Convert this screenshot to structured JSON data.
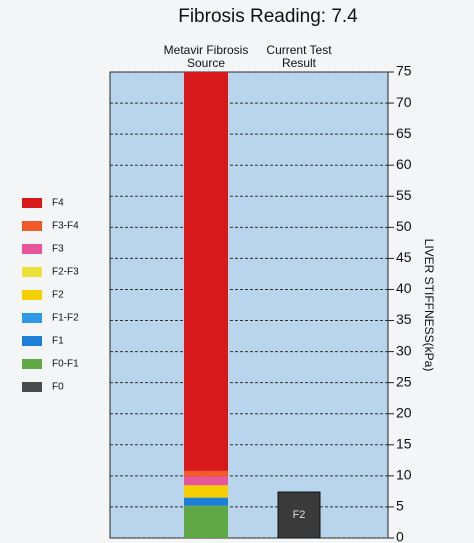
{
  "chart_data": {
    "type": "stacked_bar",
    "title": "Fibrosis Reading: 7.4",
    "categories": [
      "Metavir Fibrosis Source",
      "Current Test Result"
    ],
    "series": [
      {
        "name": "F4",
        "color": "#d7191c",
        "values": [
          64.2,
          null
        ]
      },
      {
        "name": "F3-F4",
        "color": "#f05a28",
        "values": [
          0.9,
          null
        ]
      },
      {
        "name": "F3",
        "color": "#e8559a",
        "values": [
          1.4,
          null
        ]
      },
      {
        "name": "F2-F3",
        "color": "#f2e03a",
        "values": [
          null,
          null
        ]
      },
      {
        "name": "F2",
        "color": "#f5d000",
        "values": [
          2.0,
          null
        ]
      },
      {
        "name": "F1-F2",
        "color": "#2f9be8",
        "values": [
          null,
          null
        ]
      },
      {
        "name": "F1",
        "color": "#1e7fd8",
        "values": [
          1.3,
          null
        ]
      },
      {
        "name": "F0-F1",
        "color": "#5fa845",
        "values": [
          5.2,
          null
        ]
      },
      {
        "name": "F0",
        "color": "#4a4a4a",
        "values": [
          null,
          null
        ]
      }
    ],
    "result": {
      "value": 7.4,
      "label": "F2",
      "color": "#3a3a3a"
    },
    "y_label": "LIVER STIFFNESS(kPa)",
    "ylim": [
      0,
      75
    ],
    "yticks": [
      0,
      5,
      10,
      15,
      20,
      25,
      30,
      35,
      40,
      45,
      50,
      55,
      60,
      65,
      70,
      75
    ],
    "grid": true
  }
}
